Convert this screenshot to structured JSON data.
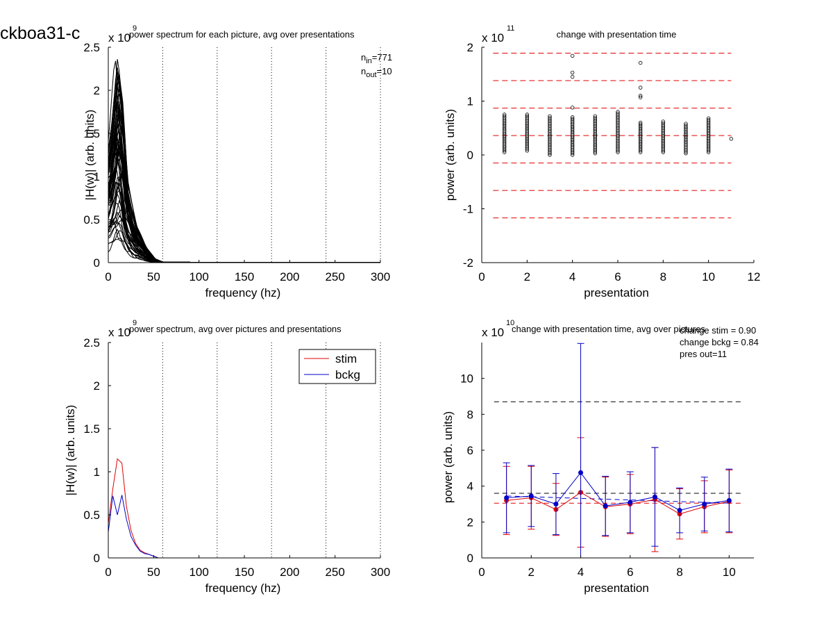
{
  "figure": {
    "id_label": "ckboa31-c"
  },
  "chart_data": [
    {
      "type": "line",
      "title": "power spectrum for each picture, avg over presentations",
      "xlabel": "frequency (hz)",
      "ylabel": "|H(w)| (arb. units)",
      "exponent_label": "x 10",
      "exponent": "9",
      "xlim": [
        0,
        300
      ],
      "ylim": [
        0,
        2.5
      ],
      "xticks": [
        "0",
        "50",
        "100",
        "150",
        "200",
        "250",
        "300"
      ],
      "yticks": [
        "0",
        "0.5",
        "1",
        "1.5",
        "2",
        "2.5"
      ],
      "vlines_dotted": [
        60,
        120,
        180,
        240,
        300
      ],
      "annotations": {
        "n_in_base": "n",
        "n_in_sub": "in",
        "n_in_val": "=771",
        "n_out_base": "n",
        "n_out_sub": "out",
        "n_out_val": "=10"
      },
      "note": "bundle of individual spectra, peak near 10 Hz, max about 2.4",
      "envelope": {
        "x": [
          0,
          5,
          10,
          15,
          20,
          30,
          40,
          50,
          60
        ],
        "ymax": [
          1.2,
          1.7,
          2.4,
          1.9,
          1.0,
          0.45,
          0.2,
          0.05,
          0.0
        ]
      },
      "color": "#000000"
    },
    {
      "type": "scatter",
      "title": "change with presentation time",
      "xlabel": "presentation",
      "ylabel": "power (arb. units)",
      "exponent_label": "x 10",
      "exponent": "11",
      "xlim": [
        0,
        12
      ],
      "ylim": [
        -2,
        2
      ],
      "xticks": [
        "0",
        "2",
        "4",
        "6",
        "8",
        "10",
        "12"
      ],
      "yticks": [
        "-2",
        "-1",
        "0",
        "1",
        "2"
      ],
      "hlines_dashed": [
        1.89,
        1.38,
        0.87,
        0.36,
        -0.15,
        -0.66,
        -1.17
      ],
      "hline_color": "#e00000",
      "columns": [
        {
          "x": 1,
          "min": 0.05,
          "max": 0.75,
          "outliers": []
        },
        {
          "x": 2,
          "min": 0.08,
          "max": 0.75,
          "outliers": []
        },
        {
          "x": 3,
          "min": 0.0,
          "max": 0.72,
          "outliers": []
        },
        {
          "x": 4,
          "min": 0.0,
          "max": 0.7,
          "outliers": [
            0.88,
            1.45,
            1.53,
            1.84
          ]
        },
        {
          "x": 5,
          "min": 0.03,
          "max": 0.72,
          "outliers": []
        },
        {
          "x": 6,
          "min": 0.05,
          "max": 0.8,
          "outliers": []
        },
        {
          "x": 7,
          "min": 0.05,
          "max": 0.6,
          "outliers": [
            1.07,
            1.1,
            1.25,
            1.71
          ]
        },
        {
          "x": 8,
          "min": 0.05,
          "max": 0.62,
          "outliers": []
        },
        {
          "x": 9,
          "min": 0.03,
          "max": 0.58,
          "outliers": []
        },
        {
          "x": 10,
          "min": 0.05,
          "max": 0.68,
          "outliers": []
        },
        {
          "x": 11,
          "min": 0.3,
          "max": 0.3,
          "outliers": []
        }
      ]
    },
    {
      "type": "line",
      "title": "power spectrum, avg over pictures and presentations",
      "xlabel": "frequency (hz)",
      "ylabel": "|H(w)| (arb. units)",
      "exponent_label": "x 10",
      "exponent": "9",
      "xlim": [
        0,
        300
      ],
      "ylim": [
        0,
        2.5
      ],
      "xticks": [
        "0",
        "50",
        "100",
        "150",
        "200",
        "250",
        "300"
      ],
      "yticks": [
        "0",
        "0.5",
        "1",
        "1.5",
        "2",
        "2.5"
      ],
      "vlines_dotted": [
        60,
        120,
        180,
        240,
        300
      ],
      "legend_position": "top-right",
      "series": [
        {
          "name": "stim",
          "color": "#e00000",
          "x": [
            0,
            5,
            10,
            15,
            20,
            25,
            30,
            35,
            40,
            45,
            50,
            55,
            60,
            100,
            150,
            200,
            250,
            300
          ],
          "y": [
            0.4,
            0.8,
            1.15,
            1.1,
            0.6,
            0.32,
            0.17,
            0.09,
            0.06,
            0.04,
            0.02,
            0.0,
            0.0,
            0.0,
            0.0,
            0.0,
            0.0,
            0.0
          ]
        },
        {
          "name": "bckg",
          "color": "#0000c8",
          "x": [
            0,
            5,
            10,
            15,
            20,
            25,
            30,
            35,
            40,
            45,
            50,
            55,
            60,
            100,
            150,
            200,
            250,
            300
          ],
          "y": [
            0.3,
            0.72,
            0.5,
            0.73,
            0.45,
            0.25,
            0.15,
            0.08,
            0.05,
            0.04,
            0.02,
            0.0,
            0.0,
            0.0,
            0.0,
            0.0,
            0.0,
            0.0
          ]
        }
      ]
    },
    {
      "type": "line",
      "title": "change with presentation time, avg over pictures",
      "xlabel": "presentation",
      "ylabel": "power (arb. units)",
      "exponent_label": "x 10",
      "exponent": "10",
      "xlim": [
        0,
        11
      ],
      "ylim": [
        0,
        12
      ],
      "xticks": [
        "0",
        "2",
        "4",
        "6",
        "8",
        "10"
      ],
      "yticks": [
        "0",
        "2",
        "4",
        "6",
        "8",
        "10"
      ],
      "annotations": [
        "change stim = 0.90",
        "change bckg = 0.84",
        "pres out=11"
      ],
      "hlines_dashed": [
        {
          "y": 8.7,
          "color": "#000000"
        },
        {
          "y": 3.6,
          "color": "#000000"
        },
        {
          "y": 3.05,
          "color": "#e00000"
        }
      ],
      "trend_line": {
        "x": [
          1,
          10
        ],
        "y": [
          3.45,
          3.05
        ],
        "color": "#0000c8"
      },
      "series": [
        {
          "name": "stim",
          "color": "#e00000",
          "x": [
            1,
            2,
            3,
            4,
            5,
            6,
            7,
            8,
            9,
            10
          ],
          "y": [
            3.2,
            3.35,
            2.7,
            3.65,
            2.85,
            3.0,
            3.25,
            2.45,
            2.85,
            3.15
          ],
          "err": [
            1.9,
            1.75,
            1.45,
            3.05,
            1.65,
            1.65,
            2.9,
            1.4,
            1.45,
            1.75
          ]
        },
        {
          "name": "bckg",
          "color": "#0000c8",
          "x": [
            1,
            2,
            3,
            4,
            5,
            6,
            7,
            8,
            9,
            10
          ],
          "y": [
            3.35,
            3.45,
            3.0,
            4.75,
            2.9,
            3.1,
            3.4,
            2.65,
            3.0,
            3.2
          ],
          "err": [
            1.95,
            1.7,
            1.7,
            7.2,
            1.65,
            1.7,
            2.75,
            1.25,
            1.5,
            1.75
          ]
        }
      ]
    }
  ]
}
